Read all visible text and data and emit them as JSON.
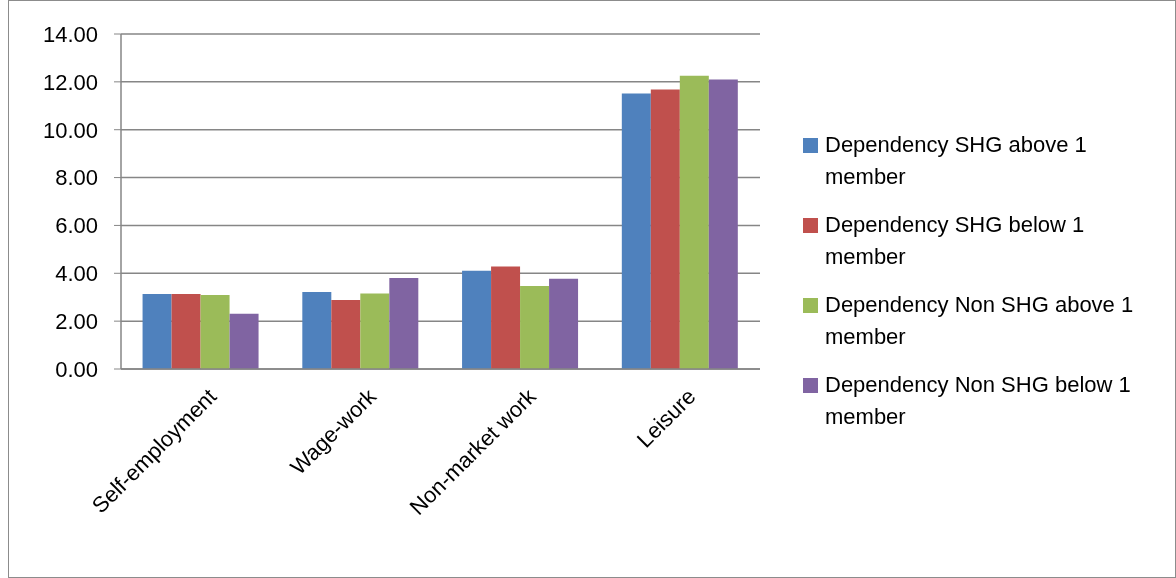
{
  "chart_data": {
    "type": "bar",
    "categories": [
      "Self-employment",
      "Wage-work",
      "Non-market work",
      "Leisure"
    ],
    "series": [
      {
        "name": "Dependency SHG above 1 member",
        "color": "#4f81bd",
        "values": [
          3.13,
          3.22,
          4.11,
          11.51
        ]
      },
      {
        "name": "Dependency SHG below 1 member",
        "color": "#c0504d",
        "values": [
          3.13,
          2.88,
          4.28,
          11.68
        ]
      },
      {
        "name": "Dependency Non SHG above 1 member",
        "color": "#9bbb59",
        "values": [
          3.09,
          3.16,
          3.47,
          12.26
        ]
      },
      {
        "name": "Dependency Non SHG below 1 member",
        "color": "#8064a2",
        "values": [
          2.31,
          3.8,
          3.77,
          12.1
        ]
      }
    ],
    "ylim": [
      0,
      14
    ],
    "yticks": [
      {
        "value": 0,
        "label": "0.00"
      },
      {
        "value": 2,
        "label": "2.00"
      },
      {
        "value": 4,
        "label": "4.00"
      },
      {
        "value": 6,
        "label": "6.00"
      },
      {
        "value": 8,
        "label": "8.00"
      },
      {
        "value": 10,
        "label": "10.00"
      },
      {
        "value": 12,
        "label": "12.00"
      },
      {
        "value": 14,
        "label": "14.00"
      }
    ],
    "grid": "y",
    "legend": "right"
  }
}
